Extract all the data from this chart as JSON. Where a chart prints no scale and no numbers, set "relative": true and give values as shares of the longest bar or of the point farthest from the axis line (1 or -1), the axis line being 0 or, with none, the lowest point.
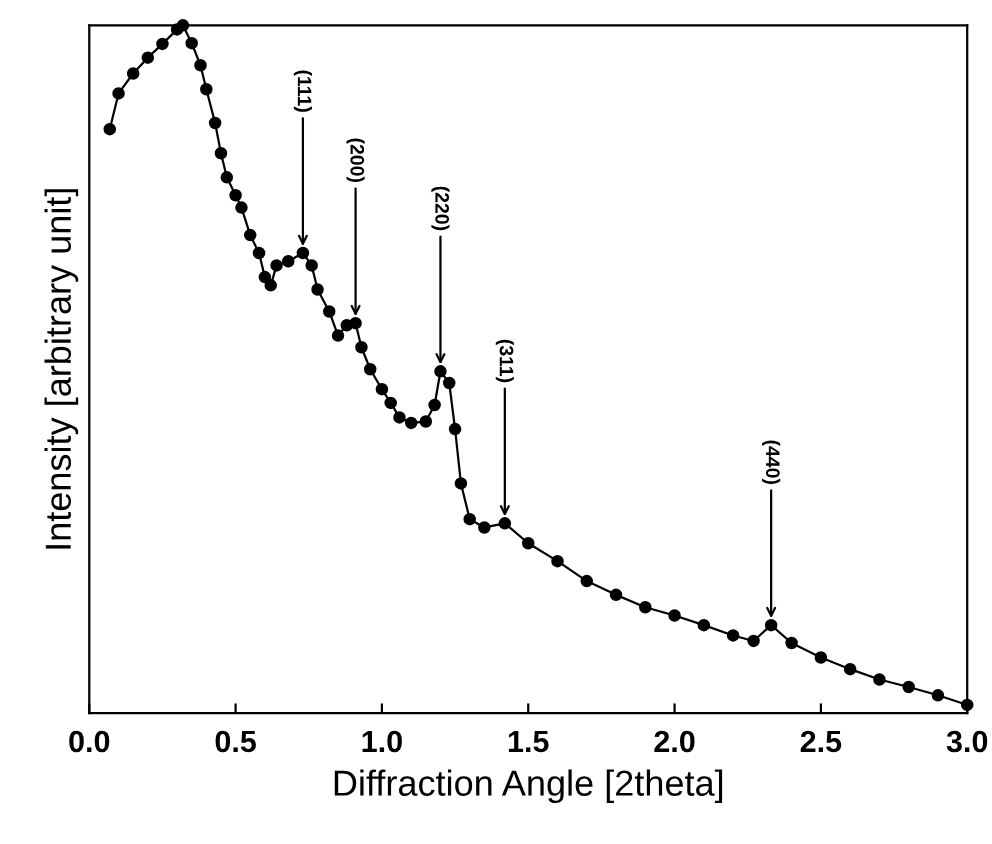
{
  "chart_data": {
    "type": "line",
    "relative": true,
    "xlabel": "Diffraction Angle [2theta]",
    "ylabel": "Intensity [arbitrary unit]",
    "marker": "circle",
    "line_style": "solid",
    "grid": false,
    "xlim": [
      0,
      3
    ],
    "xticks": [
      {
        "value": 0,
        "label": "0.0"
      },
      {
        "value": 0.5,
        "label": "0.5"
      },
      {
        "value": 1,
        "label": "1.0"
      },
      {
        "value": 1.5,
        "label": "1.5"
      },
      {
        "value": 2,
        "label": "2.0"
      },
      {
        "value": 2.5,
        "label": "2.5"
      },
      {
        "value": 3,
        "label": "3.0"
      }
    ],
    "annotations": [
      {
        "text": "(111)",
        "x": 0.73,
        "y": 0.669
      },
      {
        "text": "(200)",
        "x": 0.91,
        "y": 0.567
      },
      {
        "text": "(220)",
        "x": 1.2,
        "y": 0.497
      },
      {
        "text": "(311)",
        "x": 1.42,
        "y": 0.276
      },
      {
        "text": "(440)",
        "x": 2.33,
        "y": 0.128
      }
    ],
    "series": [
      {
        "color": "#000000",
        "x": [
          0.07,
          0.1,
          0.15,
          0.2,
          0.25,
          0.3,
          0.32,
          0.35,
          0.38,
          0.4,
          0.43,
          0.45,
          0.47,
          0.5,
          0.52,
          0.55,
          0.58,
          0.6,
          0.62,
          0.64,
          0.68,
          0.73,
          0.76,
          0.78,
          0.82,
          0.85,
          0.88,
          0.91,
          0.93,
          0.96,
          1.0,
          1.03,
          1.06,
          1.1,
          1.15,
          1.18,
          1.2,
          1.23,
          1.25,
          1.27,
          1.3,
          1.35,
          1.42,
          1.5,
          1.6,
          1.7,
          1.8,
          1.9,
          2.0,
          2.1,
          2.2,
          2.27,
          2.33,
          2.4,
          2.5,
          2.6,
          2.7,
          2.8,
          2.9,
          3.0
        ],
        "values": [
          0.849,
          0.901,
          0.93,
          0.953,
          0.973,
          0.994,
          1.0,
          0.974,
          0.942,
          0.907,
          0.858,
          0.814,
          0.779,
          0.753,
          0.735,
          0.695,
          0.669,
          0.634,
          0.622,
          0.651,
          0.657,
          0.669,
          0.651,
          0.616,
          0.584,
          0.549,
          0.564,
          0.567,
          0.532,
          0.5,
          0.471,
          0.451,
          0.43,
          0.422,
          0.424,
          0.448,
          0.497,
          0.48,
          0.413,
          0.334,
          0.282,
          0.27,
          0.276,
          0.247,
          0.221,
          0.192,
          0.172,
          0.154,
          0.142,
          0.128,
          0.113,
          0.105,
          0.128,
          0.102,
          0.081,
          0.064,
          0.049,
          0.038,
          0.026,
          0.012
        ]
      }
    ]
  }
}
